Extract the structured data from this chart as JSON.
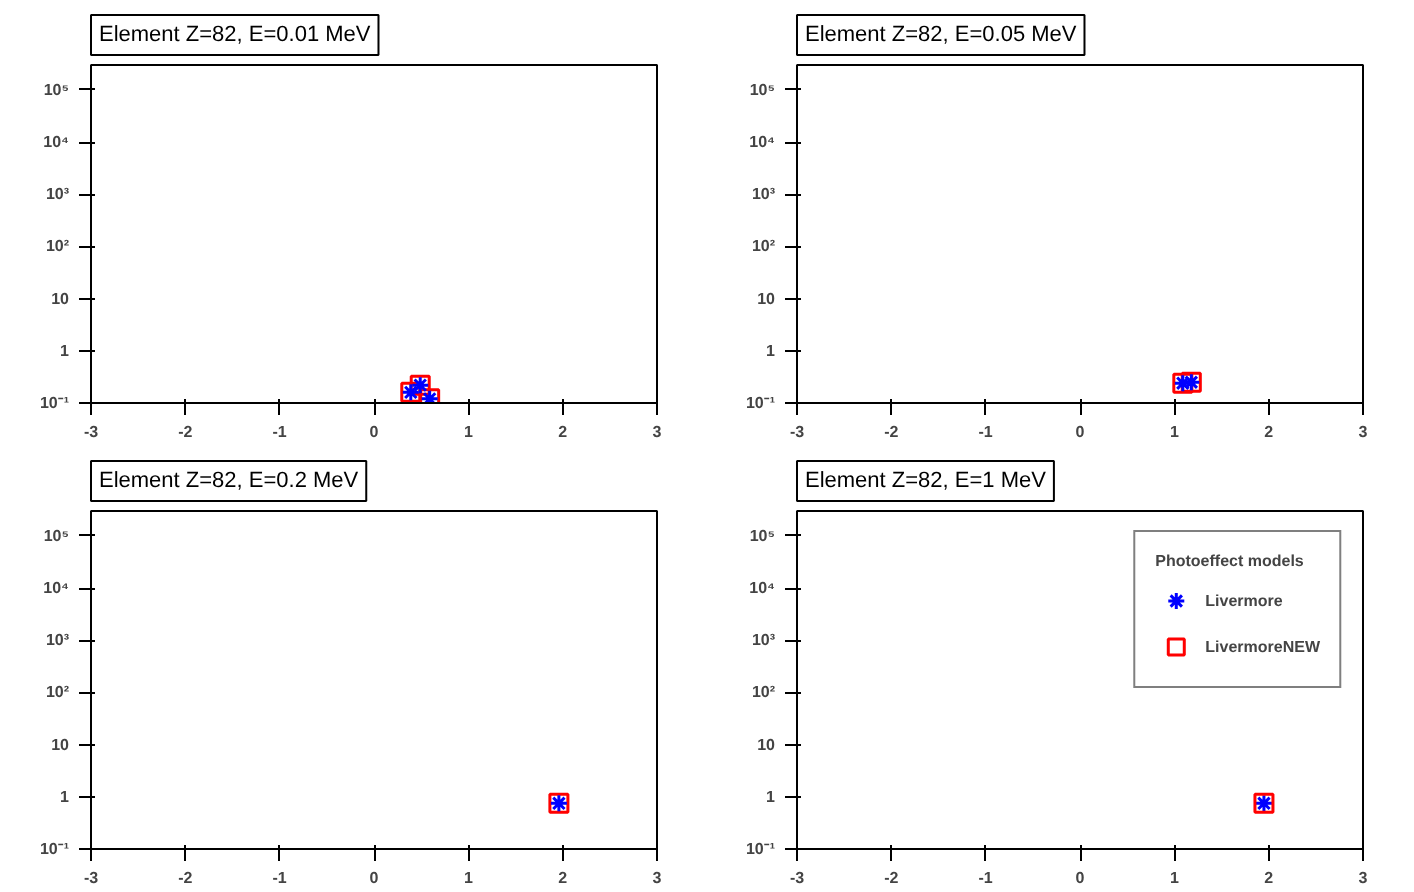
{
  "chart_data": [
    {
      "type": "scatter",
      "title": "Element Z=82, E=0.01 MeV",
      "log": "y",
      "grid": false,
      "xlim": [
        -3,
        3
      ],
      "xticks": [
        -3,
        -2,
        -1,
        0,
        1,
        2,
        3
      ],
      "ylim": [
        0.1,
        300000
      ],
      "yticks": [
        {
          "value": 0.1,
          "label": "10⁻¹"
        },
        1,
        10,
        {
          "value": 100,
          "label": "10²"
        },
        {
          "value": 1000,
          "label": "10³"
        },
        {
          "value": 10000,
          "label": "10⁴"
        },
        {
          "value": 100000,
          "label": "10⁵"
        }
      ],
      "series": [
        {
          "color": "#ff0000",
          "marker": "square",
          "x": [
            0.39,
            0.49,
            0.59
          ],
          "values": [
            0.16,
            0.22,
            0.12
          ]
        },
        {
          "color": "#0000ff",
          "marker": "cross",
          "x": [
            0.39,
            0.49,
            0.59
          ],
          "values": [
            0.16,
            0.22,
            0.12
          ]
        }
      ]
    },
    {
      "type": "scatter",
      "title": "Element Z=82, E=0.05 MeV",
      "log": "y",
      "grid": false,
      "xlim": [
        -3,
        3
      ],
      "xticks": [
        -3,
        -2,
        -1,
        0,
        1,
        2,
        3
      ],
      "ylim": [
        0.1,
        300000
      ],
      "yticks": [
        {
          "value": 0.1,
          "label": "10⁻¹"
        },
        1,
        10,
        {
          "value": 100,
          "label": "10²"
        },
        {
          "value": 1000,
          "label": "10³"
        },
        {
          "value": 10000,
          "label": "10⁴"
        },
        {
          "value": 100000,
          "label": "10⁵"
        }
      ],
      "series": [
        {
          "color": "#ff0000",
          "marker": "square",
          "x": [
            1.09,
            1.18
          ],
          "values": [
            0.24,
            0.25
          ]
        },
        {
          "color": "#0000ff",
          "marker": "cross",
          "x": [
            1.09,
            1.18
          ],
          "values": [
            0.24,
            0.25
          ]
        }
      ]
    },
    {
      "type": "scatter",
      "title": "Element Z=82, E=0.2 MeV",
      "log": "y",
      "grid": false,
      "xlim": [
        -3,
        3
      ],
      "xticks": [
        -3,
        -2,
        -1,
        0,
        1,
        2,
        3
      ],
      "ylim": [
        0.1,
        300000
      ],
      "yticks": [
        {
          "value": 0.1,
          "label": "10⁻¹"
        },
        1,
        10,
        {
          "value": 100,
          "label": "10²"
        },
        {
          "value": 1000,
          "label": "10³"
        },
        {
          "value": 10000,
          "label": "10⁴"
        },
        {
          "value": 100000,
          "label": "10⁵"
        }
      ],
      "series": [
        {
          "color": "#ff0000",
          "marker": "square",
          "x": [
            1.96
          ],
          "values": [
            0.75
          ]
        },
        {
          "color": "#0000ff",
          "marker": "cross",
          "x": [
            1.96
          ],
          "values": [
            0.75
          ]
        }
      ]
    },
    {
      "type": "scatter",
      "title": "Element Z=82, E=1 MeV",
      "log": "y",
      "grid": false,
      "legend": "top right",
      "legend_title": "Photoeffect models",
      "xlim": [
        -3,
        3
      ],
      "xticks": [
        -3,
        -2,
        -1,
        0,
        1,
        2,
        3
      ],
      "ylim": [
        0.1,
        300000
      ],
      "yticks": [
        {
          "value": 0.1,
          "label": "10⁻¹"
        },
        1,
        10,
        {
          "value": 100,
          "label": "10²"
        },
        {
          "value": 1000,
          "label": "10³"
        },
        {
          "value": 10000,
          "label": "10⁴"
        },
        {
          "value": 100000,
          "label": "10⁵"
        }
      ],
      "series": [
        {
          "name": "Livermore",
          "color": "#0000ff",
          "marker": "cross",
          "x": [
            1.95
          ],
          "values": [
            0.75
          ]
        },
        {
          "name": "LivermoreNEW",
          "color": "#ff0000",
          "marker": "square",
          "x": [
            1.95
          ],
          "values": [
            0.75
          ]
        }
      ]
    }
  ]
}
